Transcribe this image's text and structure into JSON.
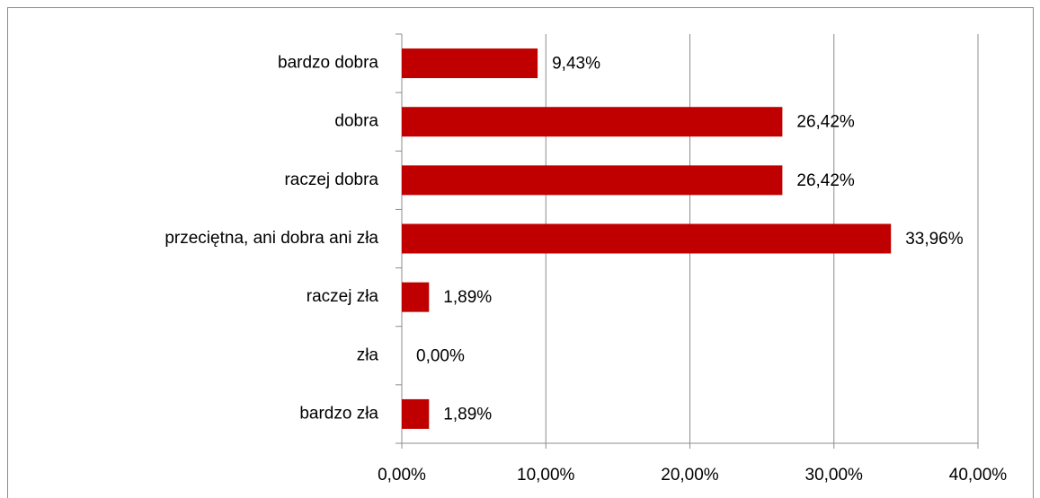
{
  "chart_data": {
    "type": "bar",
    "orientation": "horizontal",
    "categories": [
      "bardzo dobra",
      "dobra",
      "raczej dobra",
      "przeciętna, ani dobra ani zła",
      "raczej zła",
      "zła",
      "bardzo zła"
    ],
    "values": [
      9.43,
      26.42,
      26.42,
      33.96,
      1.89,
      0,
      1.89
    ],
    "value_labels": [
      "9,43%",
      "26,42%",
      "26,42%",
      "33,96%",
      "1,89%",
      "0,00%",
      "1,89%"
    ],
    "color": "#c00000",
    "xlim": [
      0,
      40
    ],
    "xticks": [
      {
        "value": 0,
        "label": "0,00%"
      },
      {
        "value": 10,
        "label": "10,00%"
      },
      {
        "value": 20,
        "label": "20,00%"
      },
      {
        "value": 30,
        "label": "30,00%"
      },
      {
        "value": 40,
        "label": "40,00%"
      }
    ],
    "grid": true
  }
}
